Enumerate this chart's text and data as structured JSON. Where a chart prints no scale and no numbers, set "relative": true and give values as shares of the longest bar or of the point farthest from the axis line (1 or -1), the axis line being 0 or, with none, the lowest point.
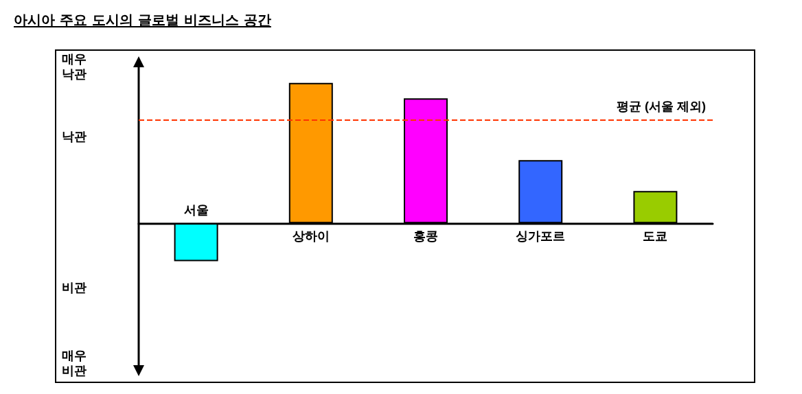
{
  "chart_data": {
    "type": "bar",
    "title": "아시아 주요 도시의 글로벌 비즈니스 공간",
    "categories": [
      "서울",
      "상하이",
      "홍콩",
      "싱가포르",
      "도쿄"
    ],
    "values": [
      -0.27,
      1,
      0.89,
      0.45,
      0.23
    ],
    "colors": [
      "#00ffff",
      "#ff9900",
      "#ff00ff",
      "#3366ff",
      "#99cc00"
    ],
    "relative": true,
    "annotations": [
      "매우 낙관",
      "낙관",
      "비관",
      "매우 비관"
    ],
    "ref_lines": [
      {
        "axis": "y",
        "value": 0.74,
        "label": "평균 (서울 제외)",
        "color": "#ff3300",
        "line_style": "dashed"
      }
    ],
    "grid": false
  }
}
